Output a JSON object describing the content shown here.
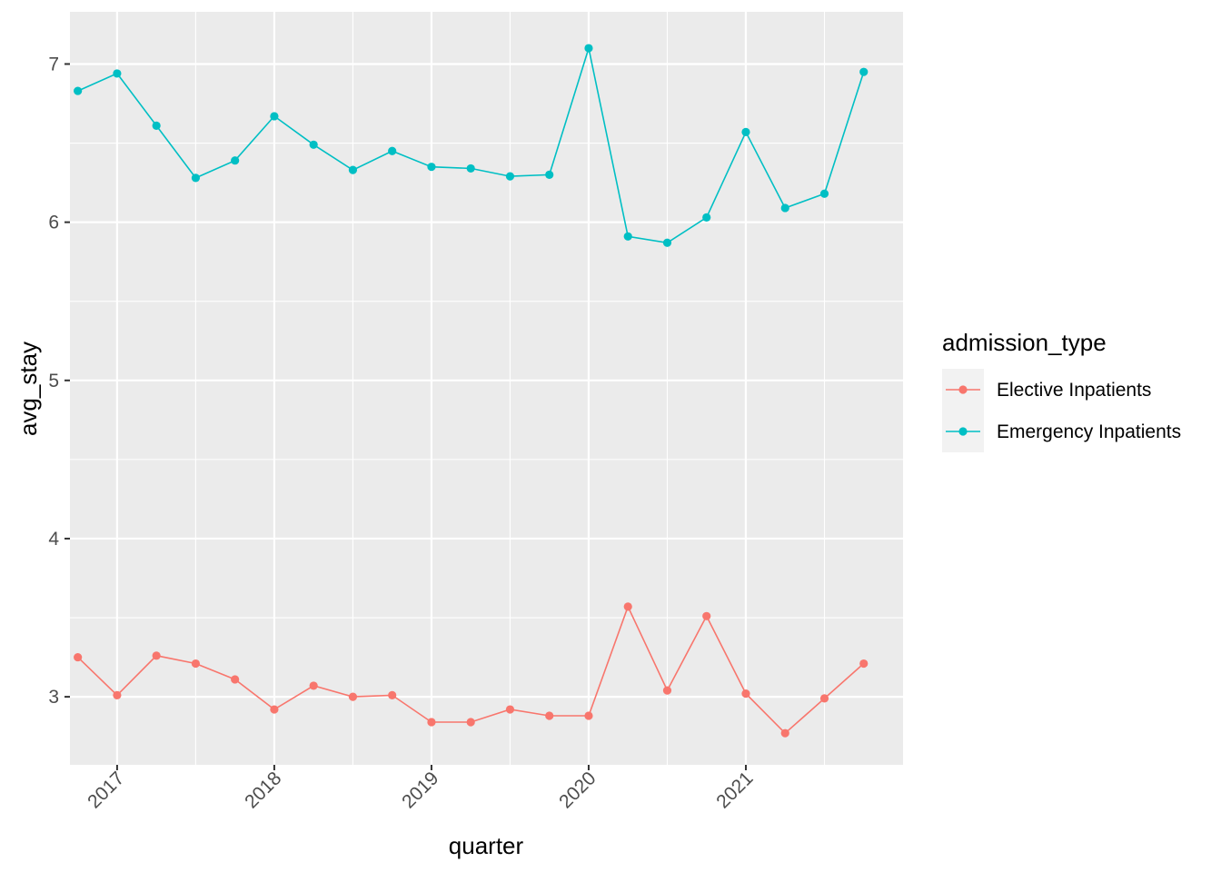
{
  "chart_data": {
    "type": "line",
    "xlabel": "quarter",
    "ylabel": "avg_stay",
    "x_tick_labels": [
      "2017",
      "2018",
      "2019",
      "2020",
      "2021"
    ],
    "y_tick_labels": [
      "3",
      "4",
      "5",
      "6",
      "7"
    ],
    "xlim": [
      2016.7,
      2022.0
    ],
    "ylim": [
      2.57,
      7.33
    ],
    "grid": true,
    "legend": {
      "title": "admission_type",
      "placement": "right"
    },
    "x": [
      2016.75,
      2017.0,
      2017.25,
      2017.5,
      2017.75,
      2018.0,
      2018.25,
      2018.5,
      2018.75,
      2019.0,
      2019.25,
      2019.5,
      2019.75,
      2020.0,
      2020.25,
      2020.5,
      2020.75,
      2021.0,
      2021.25,
      2021.5,
      2021.75
    ],
    "series": [
      {
        "name": "Elective Inpatients",
        "color": "#F8766D",
        "values": [
          3.25,
          3.01,
          3.26,
          3.21,
          3.11,
          2.92,
          3.07,
          3.0,
          3.01,
          2.84,
          2.84,
          2.92,
          2.88,
          2.88,
          3.57,
          3.04,
          3.51,
          3.02,
          2.77,
          2.99,
          3.21
        ]
      },
      {
        "name": "Emergency Inpatients",
        "color": "#00BFC4",
        "values": [
          6.83,
          6.94,
          6.61,
          6.28,
          6.39,
          6.67,
          6.49,
          6.33,
          6.45,
          6.35,
          6.34,
          6.29,
          6.3,
          7.1,
          5.91,
          5.87,
          6.03,
          6.57,
          6.09,
          6.18,
          6.95
        ]
      }
    ]
  }
}
